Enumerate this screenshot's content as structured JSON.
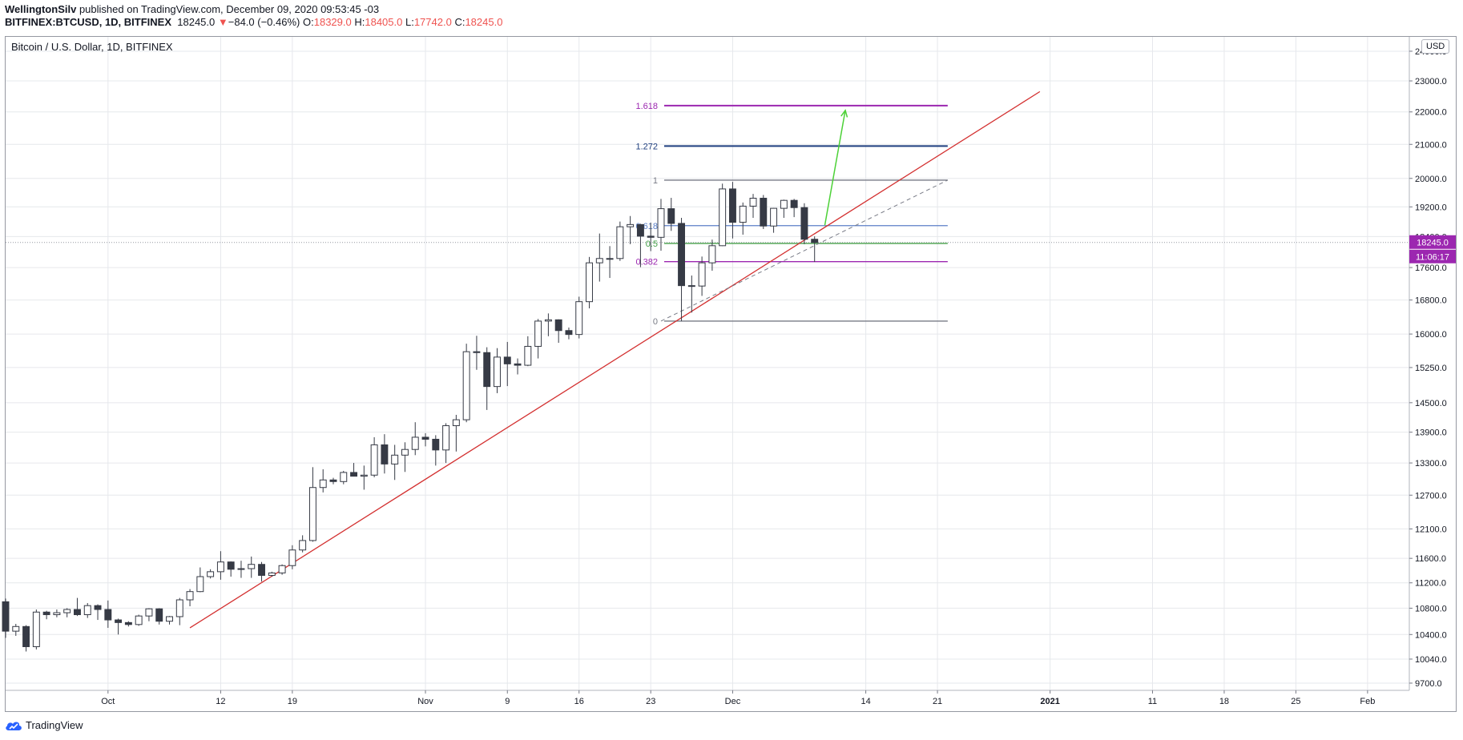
{
  "header": {
    "author": "WellingtonSilv",
    "published": "published on TradingView.com, December 09, 2020 09:53:45 -03",
    "symbol": "BITFINEX:BTCUSD, 1D, BITFINEX",
    "last": "18245.0",
    "change_arrow": "▼",
    "change": "−84.0 (−0.46%)",
    "o_label": "O:",
    "o": "18329.0",
    "h_label": "H:",
    "h": "18405.0",
    "l_label": "L:",
    "l": "17742.0",
    "c_label": "C:",
    "c": "18245.0"
  },
  "legend": "Bitcoin / U.S. Dollar, 1D, BITFINEX",
  "currency_button": "USD",
  "branding": "TradingView",
  "colors": {
    "up_body": "#ffffff",
    "down_body": "#363a45",
    "trendline": "#d32f2f",
    "target_arrow": "#4cd137",
    "price_badge": "#9c27b0",
    "grid": "#e6e8ec"
  },
  "chart_data": {
    "type": "candlestick",
    "timeframe": "1D",
    "price_axis": {
      "scale": "log",
      "ticks": [
        "9700.0",
        "10040.0",
        "10400.0",
        "10800.0",
        "11200.0",
        "11600.0",
        "12100.0",
        "12700.0",
        "13300.0",
        "13900.0",
        "14500.0",
        "15250.0",
        "16000.0",
        "16800.0",
        "17600.0",
        "18400.0",
        "19200.0",
        "20000.0",
        "21000.0",
        "22000.0",
        "23000.0",
        "24000.0"
      ],
      "range": [
        9600,
        24500
      ]
    },
    "time_axis": {
      "ticks": [
        {
          "label": "Oct",
          "date": "2020-10-01"
        },
        {
          "label": "12",
          "date": "2020-10-12"
        },
        {
          "label": "19",
          "date": "2020-10-19"
        },
        {
          "label": "Nov",
          "date": "2020-11-01"
        },
        {
          "label": "9",
          "date": "2020-11-09"
        },
        {
          "label": "16",
          "date": "2020-11-16"
        },
        {
          "label": "23",
          "date": "2020-11-23"
        },
        {
          "label": "Dec",
          "date": "2020-12-01"
        },
        {
          "label": "14",
          "date": "2020-12-14"
        },
        {
          "label": "21",
          "date": "2020-12-21"
        },
        {
          "label": "2021",
          "date": "2021-01-01"
        },
        {
          "label": "11",
          "date": "2021-01-11"
        },
        {
          "label": "18",
          "date": "2021-01-18"
        },
        {
          "label": "25",
          "date": "2021-01-25"
        },
        {
          "label": "Feb",
          "date": "2021-02-01"
        }
      ],
      "range": [
        "2020-09-21",
        "2021-02-05"
      ]
    },
    "candles": [
      {
        "d": "2020-09-21",
        "o": 10900,
        "h": 10950,
        "l": 10350,
        "c": 10450
      },
      {
        "d": "2020-09-22",
        "o": 10450,
        "h": 10560,
        "l": 10380,
        "c": 10520
      },
      {
        "d": "2020-09-23",
        "o": 10520,
        "h": 10540,
        "l": 10150,
        "c": 10220
      },
      {
        "d": "2020-09-24",
        "o": 10220,
        "h": 10780,
        "l": 10180,
        "c": 10740
      },
      {
        "d": "2020-09-25",
        "o": 10740,
        "h": 10760,
        "l": 10630,
        "c": 10700
      },
      {
        "d": "2020-09-26",
        "o": 10700,
        "h": 10780,
        "l": 10660,
        "c": 10730
      },
      {
        "d": "2020-09-27",
        "o": 10730,
        "h": 10800,
        "l": 10660,
        "c": 10780
      },
      {
        "d": "2020-09-28",
        "o": 10780,
        "h": 10960,
        "l": 10680,
        "c": 10700
      },
      {
        "d": "2020-09-29",
        "o": 10700,
        "h": 10880,
        "l": 10650,
        "c": 10840
      },
      {
        "d": "2020-09-30",
        "o": 10840,
        "h": 10860,
        "l": 10620,
        "c": 10780
      },
      {
        "d": "2020-10-01",
        "o": 10780,
        "h": 10920,
        "l": 10500,
        "c": 10620
      },
      {
        "d": "2020-10-02",
        "o": 10620,
        "h": 10640,
        "l": 10400,
        "c": 10580
      },
      {
        "d": "2020-10-03",
        "o": 10580,
        "h": 10600,
        "l": 10520,
        "c": 10550
      },
      {
        "d": "2020-10-04",
        "o": 10550,
        "h": 10700,
        "l": 10530,
        "c": 10680
      },
      {
        "d": "2020-10-05",
        "o": 10680,
        "h": 10800,
        "l": 10600,
        "c": 10790
      },
      {
        "d": "2020-10-06",
        "o": 10790,
        "h": 10800,
        "l": 10550,
        "c": 10600
      },
      {
        "d": "2020-10-07",
        "o": 10600,
        "h": 10680,
        "l": 10550,
        "c": 10670
      },
      {
        "d": "2020-10-08",
        "o": 10670,
        "h": 10960,
        "l": 10540,
        "c": 10930
      },
      {
        "d": "2020-10-09",
        "o": 10930,
        "h": 11100,
        "l": 10830,
        "c": 11060
      },
      {
        "d": "2020-10-10",
        "o": 11060,
        "h": 11450,
        "l": 11050,
        "c": 11300
      },
      {
        "d": "2020-10-11",
        "o": 11300,
        "h": 11420,
        "l": 11270,
        "c": 11380
      },
      {
        "d": "2020-10-12",
        "o": 11380,
        "h": 11720,
        "l": 11250,
        "c": 11540
      },
      {
        "d": "2020-10-13",
        "o": 11540,
        "h": 11550,
        "l": 11300,
        "c": 11420
      },
      {
        "d": "2020-10-14",
        "o": 11420,
        "h": 11560,
        "l": 11280,
        "c": 11430
      },
      {
        "d": "2020-10-15",
        "o": 11430,
        "h": 11630,
        "l": 11280,
        "c": 11500
      },
      {
        "d": "2020-10-16",
        "o": 11500,
        "h": 11540,
        "l": 11220,
        "c": 11320
      },
      {
        "d": "2020-10-17",
        "o": 11320,
        "h": 11380,
        "l": 11300,
        "c": 11360
      },
      {
        "d": "2020-10-18",
        "o": 11360,
        "h": 11500,
        "l": 11330,
        "c": 11480
      },
      {
        "d": "2020-10-19",
        "o": 11480,
        "h": 11820,
        "l": 11420,
        "c": 11740
      },
      {
        "d": "2020-10-20",
        "o": 11740,
        "h": 11990,
        "l": 11700,
        "c": 11900
      },
      {
        "d": "2020-10-21",
        "o": 11900,
        "h": 13220,
        "l": 11880,
        "c": 12840
      },
      {
        "d": "2020-10-22",
        "o": 12840,
        "h": 13180,
        "l": 12750,
        "c": 12980
      },
      {
        "d": "2020-10-23",
        "o": 12980,
        "h": 13020,
        "l": 12900,
        "c": 12950
      },
      {
        "d": "2020-10-24",
        "o": 12950,
        "h": 13150,
        "l": 12900,
        "c": 13120
      },
      {
        "d": "2020-10-25",
        "o": 13120,
        "h": 13300,
        "l": 13050,
        "c": 13050
      },
      {
        "d": "2020-10-26",
        "o": 13050,
        "h": 13250,
        "l": 12800,
        "c": 13070
      },
      {
        "d": "2020-10-27",
        "o": 13070,
        "h": 13800,
        "l": 13030,
        "c": 13650
      },
      {
        "d": "2020-10-28",
        "o": 13650,
        "h": 13860,
        "l": 13100,
        "c": 13280
      },
      {
        "d": "2020-10-29",
        "o": 13280,
        "h": 13650,
        "l": 12980,
        "c": 13450
      },
      {
        "d": "2020-10-30",
        "o": 13450,
        "h": 13700,
        "l": 13130,
        "c": 13560
      },
      {
        "d": "2020-10-31",
        "o": 13560,
        "h": 14100,
        "l": 13450,
        "c": 13800
      },
      {
        "d": "2020-11-01",
        "o": 13800,
        "h": 13880,
        "l": 13620,
        "c": 13760
      },
      {
        "d": "2020-11-02",
        "o": 13760,
        "h": 13840,
        "l": 13250,
        "c": 13550
      },
      {
        "d": "2020-11-03",
        "o": 13550,
        "h": 14080,
        "l": 13300,
        "c": 14030
      },
      {
        "d": "2020-11-04",
        "o": 14030,
        "h": 14250,
        "l": 13520,
        "c": 14150
      },
      {
        "d": "2020-11-05",
        "o": 14150,
        "h": 15780,
        "l": 14100,
        "c": 15600
      },
      {
        "d": "2020-11-06",
        "o": 15600,
        "h": 15960,
        "l": 15200,
        "c": 15580
      },
      {
        "d": "2020-11-07",
        "o": 15580,
        "h": 15700,
        "l": 14350,
        "c": 14840
      },
      {
        "d": "2020-11-08",
        "o": 14840,
        "h": 15680,
        "l": 14700,
        "c": 15480
      },
      {
        "d": "2020-11-09",
        "o": 15480,
        "h": 15820,
        "l": 14850,
        "c": 15330
      },
      {
        "d": "2020-11-10",
        "o": 15330,
        "h": 15450,
        "l": 15100,
        "c": 15300
      },
      {
        "d": "2020-11-11",
        "o": 15300,
        "h": 15950,
        "l": 15280,
        "c": 15720
      },
      {
        "d": "2020-11-12",
        "o": 15720,
        "h": 16350,
        "l": 15450,
        "c": 16300
      },
      {
        "d": "2020-11-13",
        "o": 16300,
        "h": 16480,
        "l": 15950,
        "c": 16330
      },
      {
        "d": "2020-11-14",
        "o": 16330,
        "h": 16340,
        "l": 15800,
        "c": 16080
      },
      {
        "d": "2020-11-15",
        "o": 16080,
        "h": 16150,
        "l": 15880,
        "c": 15990
      },
      {
        "d": "2020-11-16",
        "o": 15990,
        "h": 16880,
        "l": 15900,
        "c": 16760
      },
      {
        "d": "2020-11-17",
        "o": 16760,
        "h": 17870,
        "l": 16600,
        "c": 17720
      },
      {
        "d": "2020-11-18",
        "o": 17720,
        "h": 18480,
        "l": 17250,
        "c": 17830
      },
      {
        "d": "2020-11-19",
        "o": 17830,
        "h": 18150,
        "l": 17340,
        "c": 17830
      },
      {
        "d": "2020-11-20",
        "o": 17830,
        "h": 18800,
        "l": 17770,
        "c": 18660
      },
      {
        "d": "2020-11-21",
        "o": 18660,
        "h": 18950,
        "l": 18200,
        "c": 18720
      },
      {
        "d": "2020-11-22",
        "o": 18720,
        "h": 18740,
        "l": 17610,
        "c": 18410
      },
      {
        "d": "2020-11-23",
        "o": 18410,
        "h": 18770,
        "l": 18020,
        "c": 18380
      },
      {
        "d": "2020-11-24",
        "o": 18380,
        "h": 19420,
        "l": 18030,
        "c": 19150
      },
      {
        "d": "2020-11-25",
        "o": 19150,
        "h": 19450,
        "l": 18550,
        "c": 18750
      },
      {
        "d": "2020-11-26",
        "o": 18750,
        "h": 18900,
        "l": 16300,
        "c": 17150
      },
      {
        "d": "2020-11-27",
        "o": 17150,
        "h": 17400,
        "l": 16500,
        "c": 17140
      },
      {
        "d": "2020-11-28",
        "o": 17140,
        "h": 17880,
        "l": 16900,
        "c": 17720
      },
      {
        "d": "2020-11-29",
        "o": 17720,
        "h": 18320,
        "l": 17520,
        "c": 18160
      },
      {
        "d": "2020-11-30",
        "o": 18160,
        "h": 19850,
        "l": 18150,
        "c": 19700
      },
      {
        "d": "2020-12-01",
        "o": 19700,
        "h": 19900,
        "l": 18350,
        "c": 18780
      },
      {
        "d": "2020-12-02",
        "o": 18780,
        "h": 19320,
        "l": 18450,
        "c": 19220
      },
      {
        "d": "2020-12-03",
        "o": 19220,
        "h": 19560,
        "l": 18900,
        "c": 19440
      },
      {
        "d": "2020-12-04",
        "o": 19440,
        "h": 19530,
        "l": 18600,
        "c": 18680
      },
      {
        "d": "2020-12-05",
        "o": 18680,
        "h": 19170,
        "l": 18500,
        "c": 19160
      },
      {
        "d": "2020-12-06",
        "o": 19160,
        "h": 19400,
        "l": 18900,
        "c": 19380
      },
      {
        "d": "2020-12-07",
        "o": 19380,
        "h": 19420,
        "l": 18920,
        "c": 19180
      },
      {
        "d": "2020-12-08",
        "o": 19180,
        "h": 19300,
        "l": 18200,
        "c": 18329
      },
      {
        "d": "2020-12-09",
        "o": 18329,
        "h": 18405,
        "l": 17742,
        "c": 18245
      }
    ],
    "last_price": "18245.0",
    "countdown": "11:06:17",
    "fibonacci": {
      "levels": [
        {
          "label": "0",
          "price": 16300,
          "color": "#787b86"
        },
        {
          "label": "0.382",
          "price": 17750,
          "color": "#9c27b0"
        },
        {
          "label": "0.5",
          "price": 18220,
          "color": "#43a047"
        },
        {
          "label": "0.618",
          "price": 18690,
          "color": "#5b7fc7"
        },
        {
          "label": "1",
          "price": 19950,
          "color": "#787b86"
        },
        {
          "label": "1.272",
          "price": 20950,
          "color": "#1f3f7f"
        },
        {
          "label": "1.618",
          "price": 22200,
          "color": "#9c27b0"
        }
      ],
      "from_date": "2020-11-24",
      "to_date": "2020-12-22"
    },
    "trendline": {
      "from": {
        "date": "2020-10-09",
        "price": 10500
      },
      "to": {
        "date": "2020-12-31",
        "price": 22650
      }
    },
    "fib_anchor_line": {
      "from": {
        "date": "2020-11-24",
        "price": 16300
      },
      "to": {
        "date": "2020-12-22",
        "price": 19950
      }
    },
    "target_arrow": {
      "from": {
        "date": "2020-12-10",
        "price": 18700
      },
      "to": {
        "date": "2020-12-12",
        "price": 22050
      }
    },
    "grid": true
  }
}
